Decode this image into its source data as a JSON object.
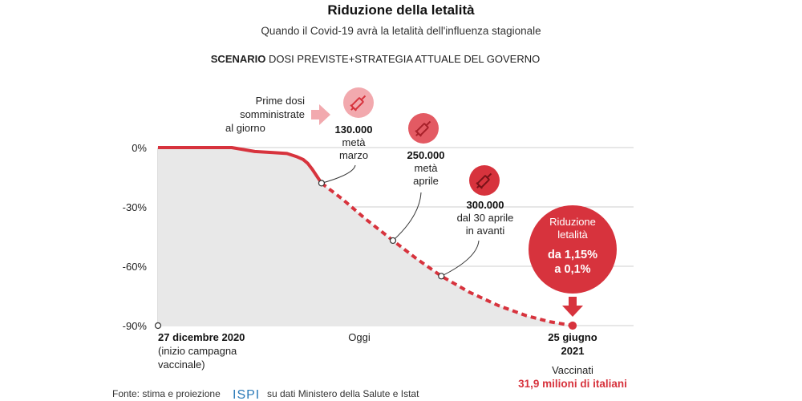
{
  "header": {
    "title": "Riduzione della letalità",
    "subtitle": "Quando il Covid-19 avrà la letalità dell'influenza stagionale",
    "scenario_bold": "SCENARIO",
    "scenario_text": "DOSI PREVISTE+STRATEGIA ATTUALE DEL GOVERNO"
  },
  "doses_intro": [
    "Prime dosi",
    "somministrate",
    "al giorno"
  ],
  "milestones": [
    {
      "value": "130.000",
      "lines": [
        "metà",
        "marzo"
      ],
      "icon": "syringe-icon",
      "day": 71,
      "reduction": -18
    },
    {
      "value": "250.000",
      "lines": [
        "metà",
        "aprile"
      ],
      "icon": "syringe-icon",
      "day": 102,
      "reduction": -47
    },
    {
      "value": "300.000",
      "lines": [
        "dal 30 aprile",
        "in avanti"
      ],
      "icon": "syringe-icon",
      "day": 123,
      "reduction": -65
    }
  ],
  "x_labels": {
    "start_date": "27 dicembre 2020",
    "start_note": [
      "(inizio campagna",
      "vaccinale)"
    ],
    "today": "Oggi",
    "end_date": [
      "25 giugno",
      "2021"
    ]
  },
  "end_note": {
    "label": "Vaccinati",
    "value": "31,9 milioni di italiani"
  },
  "callout": {
    "title": [
      "Riduzione",
      "letalità"
    ],
    "value": [
      "da 1,15%",
      "a 0,1%"
    ]
  },
  "source": {
    "prefix": "Fonte: stima e proiezione",
    "logo": "ISPI",
    "suffix": "su dati Ministero della Salute e Istat"
  },
  "colors": {
    "accent_red": "#d7333d",
    "pink": "#f2a9ae",
    "area_gray": "#e8e8e8",
    "grid": "#cfcfcf"
  },
  "chart_data": {
    "type": "area",
    "ylabel": "",
    "xlabel": "",
    "ylim": [
      -90,
      0
    ],
    "yticks": [
      0,
      -30,
      -60,
      -90
    ],
    "ytick_labels": [
      "0%",
      "-30%",
      "-60%",
      "-90%"
    ],
    "x_range_days": [
      0,
      180
    ],
    "grid": true,
    "series": [
      {
        "style": "solid",
        "x": [
          0,
          10,
          20,
          32,
          42,
          50,
          56,
          60,
          63,
          65,
          67,
          69,
          71
        ],
        "y": [
          0,
          0,
          0,
          0,
          -2,
          -2.5,
          -3,
          -4.5,
          -6,
          -8,
          -11,
          -14.5,
          -18
        ]
      },
      {
        "style": "dashed",
        "x": [
          71,
          80,
          90,
          102,
          112,
          123,
          135,
          148,
          160,
          170,
          180
        ],
        "y": [
          -18,
          -26,
          -36,
          -47,
          -56,
          -65,
          -73,
          -80,
          -85,
          -88,
          -90
        ]
      }
    ],
    "markers": [
      {
        "x": 0,
        "y": -90
      },
      {
        "x": 71,
        "y": -18
      },
      {
        "x": 102,
        "y": -47
      },
      {
        "x": 123,
        "y": -65
      },
      {
        "x": 180,
        "y": -90
      }
    ]
  }
}
